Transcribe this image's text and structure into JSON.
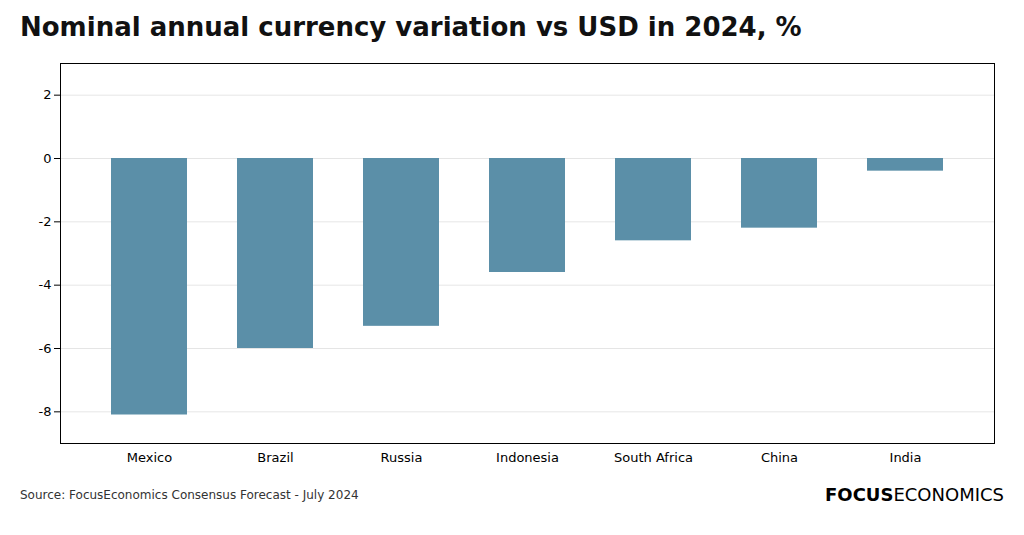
{
  "chart_data": {
    "type": "bar",
    "title": "Nominal annual currency variation vs USD in 2024, %",
    "categories": [
      "Mexico",
      "Brazil",
      "Russia",
      "Indonesia",
      "South Africa",
      "China",
      "India"
    ],
    "values": [
      -8.1,
      -6.0,
      -5.3,
      -3.6,
      -2.6,
      -2.2,
      -0.4
    ],
    "color": "#5b8fa8",
    "ylim": [
      -9,
      3
    ],
    "yticks": [
      -8,
      -6,
      -4,
      -2,
      0,
      2
    ],
    "grid": true,
    "caption": "Source: FocusEconomics Consensus Forecast - July 2024",
    "annotations": [
      "FOCUS",
      "ECONOMICS"
    ]
  }
}
